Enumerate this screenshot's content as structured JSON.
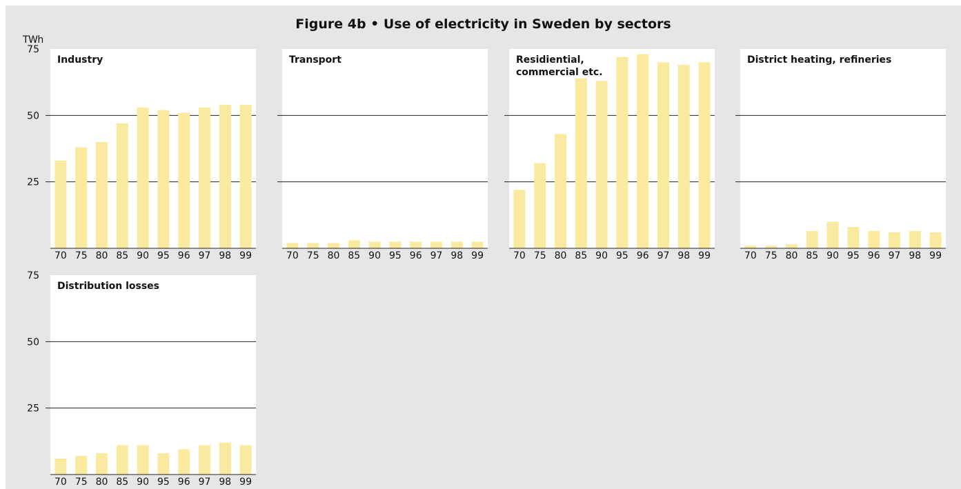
{
  "figure": {
    "title": "Figure 4b • Use of electricity in Sweden by sectors",
    "unit_label": "TWh"
  },
  "chart_data": [
    {
      "type": "bar",
      "title": "Industry",
      "categories": [
        "70",
        "75",
        "80",
        "85",
        "90",
        "95",
        "96",
        "97",
        "98",
        "99"
      ],
      "values": [
        33,
        38,
        40,
        47,
        53,
        52,
        51,
        53,
        54,
        54
      ],
      "ylim": [
        0,
        75
      ],
      "yticks": [
        25,
        50,
        75
      ],
      "grid": true,
      "bar_color": "#faeaa0"
    },
    {
      "type": "bar",
      "title": "Transport",
      "categories": [
        "70",
        "75",
        "80",
        "85",
        "90",
        "95",
        "96",
        "97",
        "98",
        "99"
      ],
      "values": [
        2,
        2,
        2,
        3,
        2.5,
        2.5,
        2.5,
        2.5,
        2.5,
        2.5
      ],
      "ylim": [
        0,
        75
      ],
      "yticks": [
        25,
        50,
        75
      ],
      "grid": true,
      "bar_color": "#faeaa0"
    },
    {
      "type": "bar",
      "title": "Residiential, commercial etc.",
      "categories": [
        "70",
        "75",
        "80",
        "85",
        "90",
        "95",
        "96",
        "97",
        "98",
        "99"
      ],
      "values": [
        22,
        32,
        43,
        64,
        63,
        72,
        73,
        70,
        69,
        70
      ],
      "ylim": [
        0,
        75
      ],
      "yticks": [
        25,
        50,
        75
      ],
      "grid": true,
      "bar_color": "#faeaa0"
    },
    {
      "type": "bar",
      "title": "District heating, refineries",
      "categories": [
        "70",
        "75",
        "80",
        "85",
        "90",
        "95",
        "96",
        "97",
        "98",
        "99"
      ],
      "values": [
        1,
        1,
        1.5,
        6.5,
        10,
        8,
        6.5,
        6,
        6.5,
        6
      ],
      "ylim": [
        0,
        75
      ],
      "yticks": [
        25,
        50,
        75
      ],
      "grid": true,
      "bar_color": "#faeaa0"
    },
    {
      "type": "bar",
      "title": "Distribution losses",
      "categories": [
        "70",
        "75",
        "80",
        "85",
        "90",
        "95",
        "96",
        "97",
        "98",
        "99"
      ],
      "values": [
        6,
        7,
        8,
        11,
        11,
        8,
        9.5,
        11,
        12,
        11
      ],
      "ylim": [
        0,
        75
      ],
      "yticks": [
        25,
        50,
        75
      ],
      "grid": true,
      "bar_color": "#faeaa0"
    }
  ]
}
